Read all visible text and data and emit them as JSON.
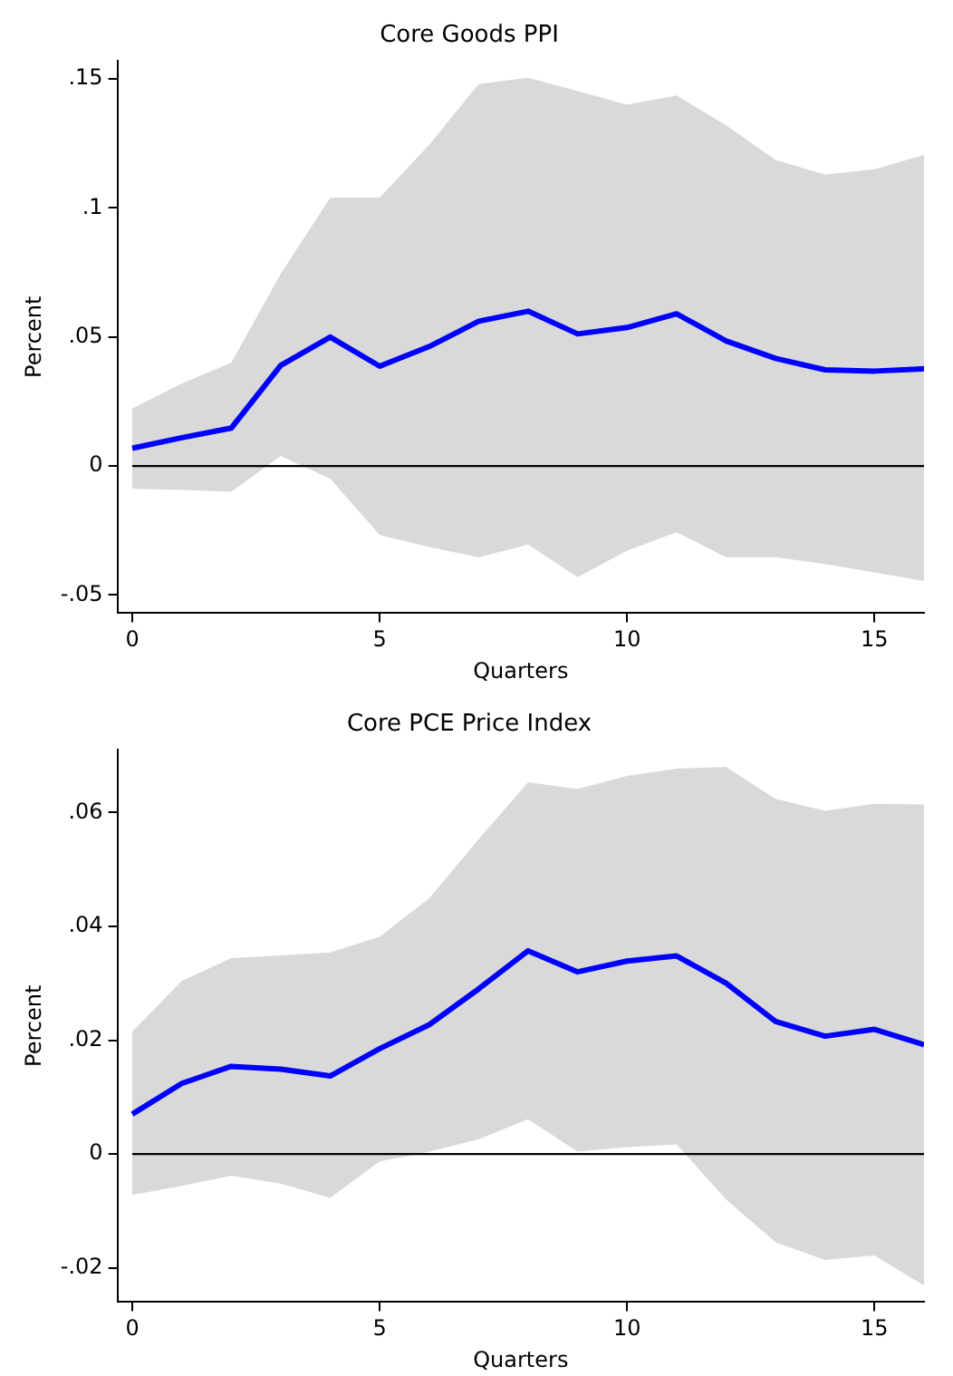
{
  "chart_data": [
    {
      "type": "line",
      "title": "Core Goods PPI",
      "xlabel": "Quarters",
      "ylabel": "Percent",
      "marker": "none",
      "x": [
        0,
        1,
        2,
        3,
        4,
        5,
        6,
        7,
        8,
        9,
        10,
        11,
        12,
        13,
        14,
        15,
        16
      ],
      "series": [
        {
          "color": "#0000ff",
          "values": [
            0.0069,
            0.011,
            0.0147,
            0.039,
            0.05,
            0.0387,
            0.0463,
            0.0561,
            0.06,
            0.0512,
            0.0537,
            0.059,
            0.0485,
            0.0417,
            0.0373,
            0.0368,
            0.0377
          ],
          "lower": [
            -0.0088,
            -0.0093,
            -0.01,
            0.0039,
            -0.0049,
            -0.0267,
            -0.0314,
            -0.0353,
            -0.0304,
            -0.0431,
            -0.0328,
            -0.0257,
            -0.0353,
            -0.0353,
            -0.038,
            -0.0412,
            -0.0446
          ],
          "upper": [
            0.0223,
            0.032,
            0.04,
            0.0745,
            0.104,
            0.104,
            0.1245,
            0.148,
            0.1505,
            0.1453,
            0.14,
            0.1436,
            0.132,
            0.1186,
            0.113,
            0.115,
            0.1206
          ]
        }
      ],
      "xlim": [
        -0.3,
        16
      ],
      "xticks": [
        0,
        5,
        10,
        15
      ],
      "ylim": [
        -0.057,
        0.157
      ],
      "yticks": [
        {
          "value": -0.05,
          "label": "-.05"
        },
        0,
        {
          "value": 0.05,
          "label": ".05"
        },
        {
          "value": 0.1,
          "label": ".1"
        },
        {
          "value": 0.15,
          "label": ".15"
        }
      ],
      "ref_lines": [
        {
          "axis": "y",
          "value": 0,
          "color": "#000000"
        }
      ]
    },
    {
      "type": "line",
      "title": "Core PCE Price Index",
      "xlabel": "Quarters",
      "ylabel": "Percent",
      "marker": "none",
      "x": [
        0,
        1,
        2,
        3,
        4,
        5,
        6,
        7,
        8,
        9,
        10,
        11,
        12,
        13,
        14,
        15,
        16
      ],
      "series": [
        {
          "color": "#0000ff",
          "values": [
            0.007,
            0.0124,
            0.0154,
            0.0149,
            0.0137,
            0.0185,
            0.0227,
            0.029,
            0.0357,
            0.032,
            0.0339,
            0.0348,
            0.03,
            0.0233,
            0.0207,
            0.0219,
            0.0192
          ],
          "lower": [
            -0.0072,
            -0.0056,
            -0.0038,
            -0.0052,
            -0.0077,
            -0.0013,
            0.0004,
            0.0026,
            0.0061,
            0.0004,
            0.0012,
            0.0017,
            -0.008,
            -0.0155,
            -0.0186,
            -0.0178,
            -0.0231
          ],
          "upper": [
            0.0215,
            0.0304,
            0.0344,
            0.0349,
            0.0354,
            0.0382,
            0.0449,
            0.0553,
            0.0653,
            0.0641,
            0.0664,
            0.0677,
            0.068,
            0.0624,
            0.0603,
            0.0615,
            0.0614
          ]
        }
      ],
      "xlim": [
        -0.3,
        16
      ],
      "xticks": [
        0,
        5,
        10,
        15
      ],
      "ylim": [
        -0.026,
        0.071
      ],
      "yticks": [
        {
          "value": -0.02,
          "label": "-.02"
        },
        0,
        {
          "value": 0.02,
          "label": ".02"
        },
        {
          "value": 0.04,
          "label": ".04"
        },
        {
          "value": 0.06,
          "label": ".06"
        }
      ],
      "ref_lines": [
        {
          "axis": "y",
          "value": 0,
          "color": "#000000"
        }
      ]
    }
  ]
}
